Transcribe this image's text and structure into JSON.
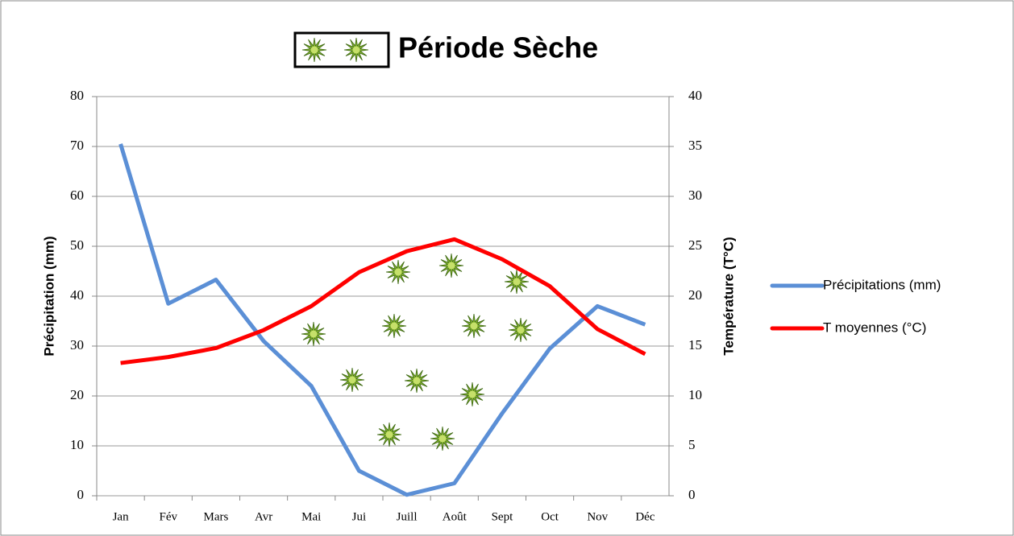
{
  "chart_data": {
    "type": "line",
    "title": "Période Sèche",
    "categories": [
      "Jan",
      "Fév",
      "Mars",
      "Avr",
      "Mai",
      "Jui",
      "Juill",
      "Août",
      "Sept",
      "Oct",
      "Nov",
      "Déc"
    ],
    "series": [
      {
        "name": "Précipitations (mm)",
        "color": "#5b8fd6",
        "values": [
          70.5,
          38.5,
          43.3,
          31,
          22,
          5,
          0.2,
          2.5,
          16.5,
          29.5,
          38,
          34.3
        ]
      },
      {
        "name": "T moyennes (°C)",
        "color": "#ff0000",
        "axis": "y2",
        "values": [
          13.3,
          13.9,
          14.8,
          16.6,
          19,
          22.4,
          24.5,
          25.7,
          23.7,
          21,
          16.7,
          14.2
        ]
      }
    ],
    "ylabel": "Précipitation (mm)",
    "y2label": "Température (T°C)",
    "ylim": [
      0,
      80
    ],
    "yticks": [
      0,
      10,
      20,
      30,
      40,
      50,
      60,
      70,
      80
    ],
    "y2lim": [
      0,
      40
    ],
    "y2ticks": [
      0,
      5,
      10,
      15,
      20,
      25,
      30,
      35,
      40
    ],
    "grid": true,
    "legend": "right"
  }
}
